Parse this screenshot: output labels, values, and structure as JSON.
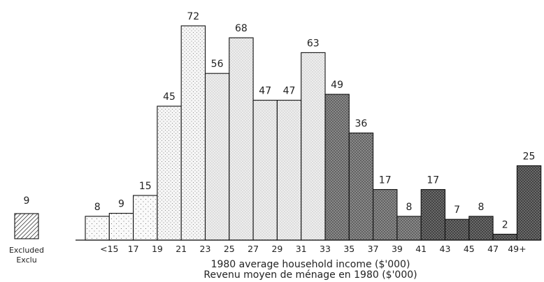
{
  "chart_data": {
    "type": "bar",
    "xlabel": "1980 average household income ($'000)",
    "xlabel_fr": "Revenu moyen de ménage en 1980 ($'000)",
    "tick_labels": [
      "<15",
      "17",
      "19",
      "21",
      "23",
      "25",
      "27",
      "29",
      "31",
      "33",
      "35",
      "37",
      "39",
      "41",
      "43",
      "45",
      "47",
      "49+"
    ],
    "values": [
      8,
      9,
      15,
      45,
      72,
      56,
      68,
      47,
      47,
      63,
      49,
      36,
      17,
      8,
      17,
      7,
      8,
      2,
      25
    ],
    "groups": [
      0,
      0,
      0,
      1,
      1,
      2,
      2,
      2,
      2,
      2,
      3,
      3,
      3,
      3,
      4,
      4,
      4,
      4,
      4
    ],
    "ylim": [
      0,
      72
    ],
    "excluded": {
      "value": 9,
      "label_en": "Excluded",
      "label_fr": "Exclu"
    }
  },
  "colors": {
    "group_0": "#fafafa",
    "group_1": "#f5f5f5",
    "group_2": "#eeeeee",
    "group_3": "#5e5e5e",
    "group_4": "#3e3e3e",
    "outline": "#111111"
  }
}
